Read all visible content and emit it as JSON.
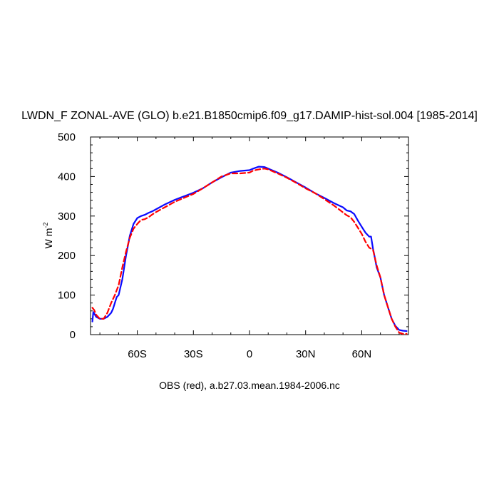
{
  "chart_data": {
    "type": "line",
    "title": "LWDN_F ZONAL-AVE (GLO) b.e21.B1850cmip6.f09_g17.DAMIP-hist-sol.004 [1985-2014]",
    "ylabel": "W m",
    "ylabel_sup": "-2",
    "xlabel": "",
    "caption": "OBS (red), a.b27.03.mean.1984-2006.nc",
    "xlim": [
      -85,
      85
    ],
    "ylim": [
      0,
      500
    ],
    "x_ticks": [
      {
        "value": -60,
        "label": "60S"
      },
      {
        "value": -30,
        "label": "30S"
      },
      {
        "value": 0,
        "label": "0"
      },
      {
        "value": 30,
        "label": "30N"
      },
      {
        "value": 60,
        "label": "60N"
      }
    ],
    "y_ticks": [
      {
        "value": 0,
        "label": "0"
      },
      {
        "value": 100,
        "label": "100"
      },
      {
        "value": 200,
        "label": "200"
      },
      {
        "value": 300,
        "label": "300"
      },
      {
        "value": 400,
        "label": "400"
      },
      {
        "value": 500,
        "label": "500"
      }
    ],
    "grid": false,
    "series": [
      {
        "color": "#0a0aff",
        "style": "solid",
        "x": [
          -84,
          -83.5,
          -82,
          -80,
          -78,
          -76,
          -74,
          -73,
          -72,
          -71,
          -70,
          -68,
          -66,
          -64,
          -62,
          -60,
          -58,
          -56,
          -54,
          -52,
          -50,
          -45,
          -40,
          -35,
          -30,
          -25,
          -20,
          -15,
          -10,
          -5,
          0,
          2,
          5,
          8,
          10,
          15,
          20,
          25,
          30,
          35,
          40,
          45,
          50,
          52,
          54,
          56,
          58,
          60,
          62,
          64,
          65,
          66,
          67,
          68,
          70,
          72,
          74,
          76,
          78,
          80,
          82,
          84
        ],
        "y": [
          33,
          57,
          45,
          40,
          40,
          45,
          55,
          65,
          80,
          95,
          100,
          140,
          200,
          250,
          280,
          295,
          300,
          303,
          308,
          312,
          317,
          330,
          341,
          350,
          359,
          370,
          385,
          398,
          410,
          414,
          416,
          420,
          425,
          424,
          420,
          410,
          398,
          385,
          372,
          358,
          346,
          333,
          322,
          314,
          312,
          305,
          288,
          273,
          258,
          248,
          248,
          218,
          195,
          170,
          145,
          100,
          70,
          40,
          22,
          12,
          10,
          9
        ]
      },
      {
        "color": "#ff0000",
        "style": "dashed",
        "x": [
          -84,
          -83,
          -82,
          -80,
          -78,
          -76,
          -74,
          -72,
          -70,
          -68,
          -66,
          -64,
          -62,
          -60,
          -58,
          -56,
          -54,
          -52,
          -50,
          -45,
          -40,
          -35,
          -30,
          -25,
          -20,
          -15,
          -10,
          -5,
          0,
          2,
          5,
          8,
          10,
          15,
          20,
          25,
          30,
          35,
          40,
          45,
          50,
          52,
          54,
          56,
          58,
          60,
          62,
          64,
          66,
          68,
          70,
          72,
          74,
          76,
          78,
          80,
          82,
          84
        ],
        "y": [
          68,
          62,
          50,
          40,
          40,
          55,
          80,
          100,
          125,
          170,
          210,
          245,
          268,
          280,
          290,
          292,
          297,
          304,
          310,
          323,
          336,
          346,
          356,
          370,
          385,
          400,
          408,
          408,
          410,
          415,
          418,
          420,
          418,
          408,
          397,
          384,
          370,
          358,
          343,
          327,
          309,
          302,
          297,
          285,
          270,
          255,
          235,
          220,
          215,
          175,
          145,
          100,
          70,
          40,
          20,
          5,
          2,
          2
        ]
      }
    ]
  }
}
